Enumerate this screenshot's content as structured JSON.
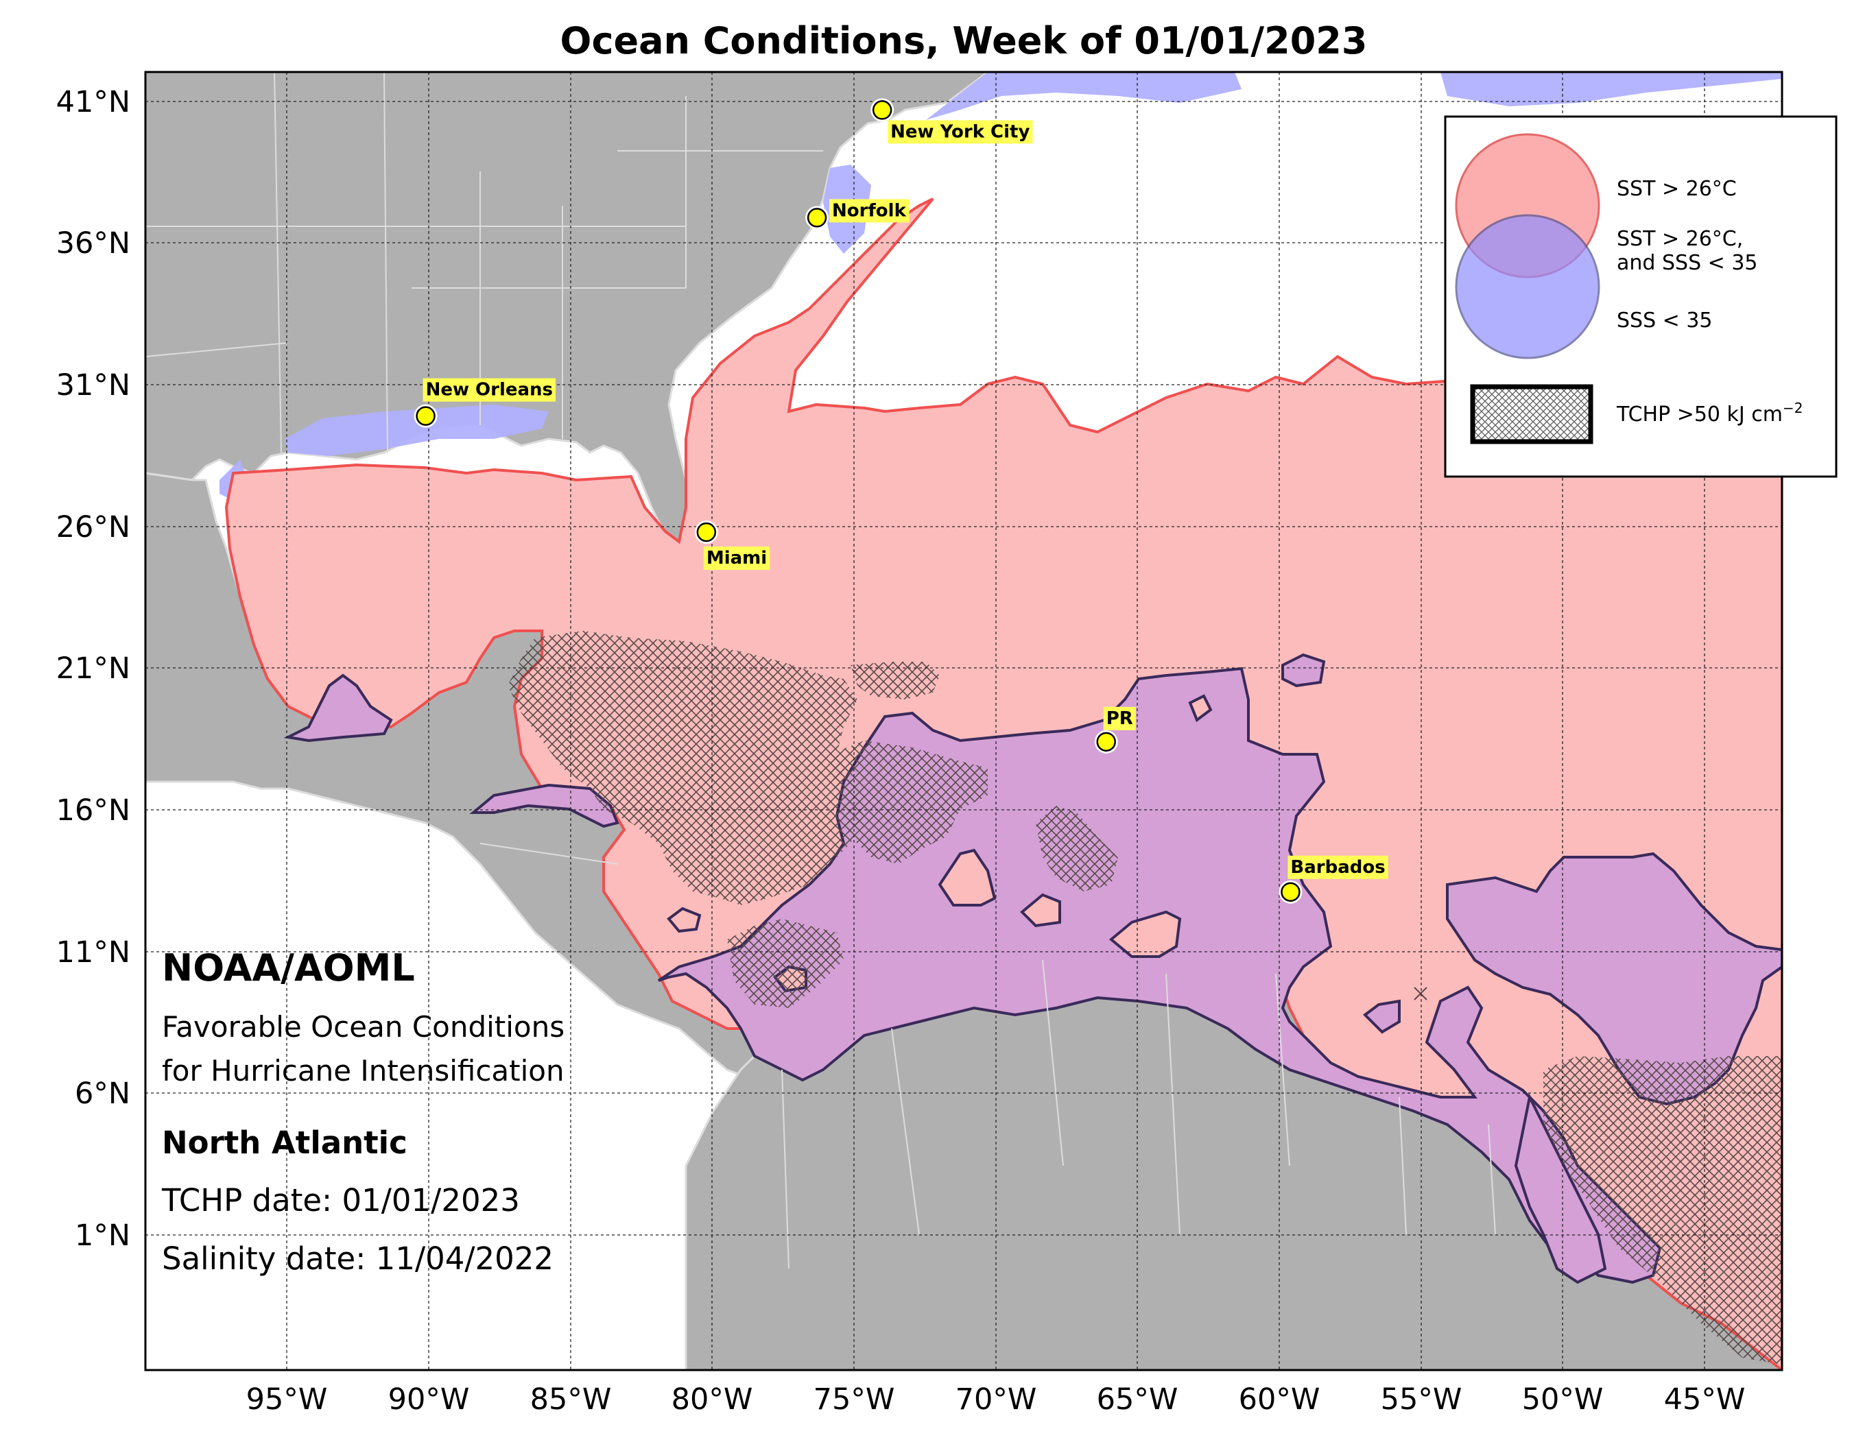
{
  "title": "Ocean Conditions, Week of 01/01/2023",
  "axes": {
    "lat_ticks": [
      "41°N",
      "36°N",
      "31°N",
      "26°N",
      "21°N",
      "16°N",
      "11°N",
      "6°N",
      "1°N"
    ],
    "lon_ticks": [
      "95°W",
      "90°W",
      "85°W",
      "80°W",
      "75°W",
      "70°W",
      "65°W",
      "60°W",
      "55°W",
      "50°W",
      "45°W"
    ]
  },
  "cities": [
    {
      "name": "New York City",
      "lon": -74.0,
      "lat": 40.7
    },
    {
      "name": "Norfolk",
      "lon": -76.3,
      "lat": 36.9
    },
    {
      "name": "New Orleans",
      "lon": -90.1,
      "lat": 29.9
    },
    {
      "name": "Miami",
      "lon": -80.2,
      "lat": 25.8
    },
    {
      "name": "PR",
      "lon": -66.1,
      "lat": 18.4
    },
    {
      "name": "Barbados",
      "lon": -59.6,
      "lat": 13.1
    }
  ],
  "legend": {
    "sst_label": "SST > 26°C",
    "both_label_1": "SST > 26°C,",
    "both_label_2": "and SSS < 35",
    "sss_label": "SSS < 35",
    "tchp_label_prefix": "TCHP >50 kJ cm",
    "tchp_label_sup": "−2"
  },
  "info": {
    "org": "NOAA/AOML",
    "subtitle_1": "Favorable Ocean Conditions",
    "subtitle_2": "for Hurricane Intensification",
    "region": "North Atlantic",
    "tchp_date": "TCHP date: 01/01/2023",
    "salinity_date": "Salinity date: 11/04/2022"
  },
  "colors": {
    "land": "#b0b0b0",
    "ocean": "#ffffff",
    "sst": "#fcbcbc",
    "sst_edge": "#f04a4a",
    "sss": "#b0b0ff",
    "both": "#d4a0d6",
    "both_edge": "#3a2a5a",
    "marker": "#ffff00",
    "label_bg": "#ffff55"
  }
}
